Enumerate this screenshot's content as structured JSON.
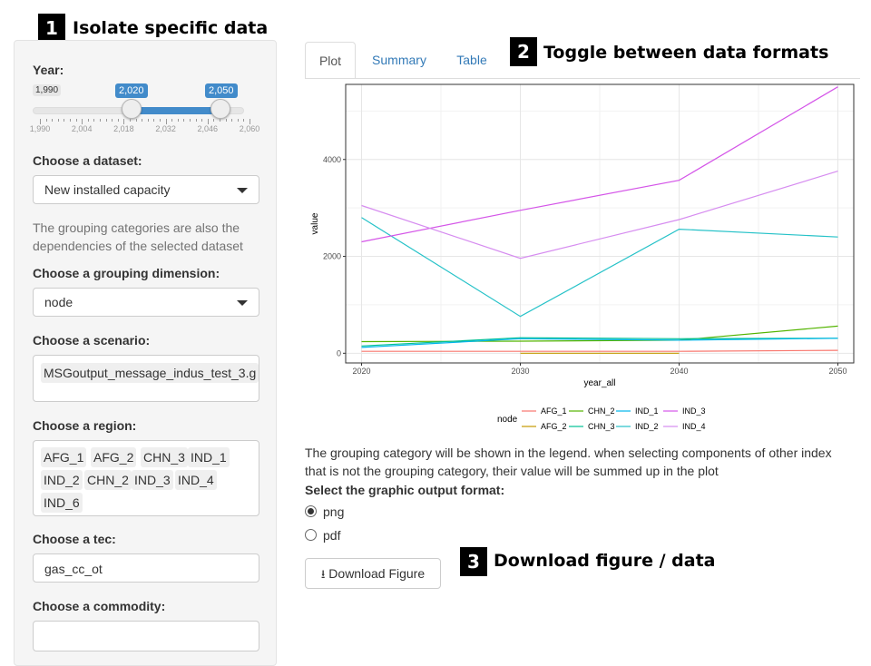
{
  "callouts": [
    {
      "num": "1",
      "text": "Isolate specific data"
    },
    {
      "num": "2",
      "text": "Toggle between data formats"
    },
    {
      "num": "3",
      "text": "Download figure / data"
    }
  ],
  "sidebar": {
    "year": {
      "label": "Year:",
      "min": "1,990",
      "from": "2,020",
      "to": "2,050",
      "range_min": 1990,
      "range_max": 2060,
      "ticks": [
        "1,990",
        "2,004",
        "2,018",
        "2,032",
        "2,046",
        "2,060"
      ]
    },
    "dataset": {
      "label": "Choose a dataset:",
      "value": "New installed capacity"
    },
    "help_text": "The grouping categories are also the dependencies of the selected dataset",
    "grouping": {
      "label": "Choose a grouping dimension:",
      "value": "node"
    },
    "scenario": {
      "label": "Choose a scenario:",
      "value": "MSGoutput_message_indus_test_3.g"
    },
    "region": {
      "label": "Choose a region:",
      "values": [
        "AFG_1",
        "AFG_2",
        "CHN_3",
        "IND_1",
        "IND_2",
        "CHN_2",
        "IND_3",
        "IND_4",
        "IND_6"
      ]
    },
    "tec": {
      "label": "Choose a tec:",
      "value": "gas_cc_ot"
    },
    "commodity": {
      "label": "Choose a commodity:",
      "value": ""
    }
  },
  "tabs": [
    {
      "label": "Plot",
      "active": true
    },
    {
      "label": "Summary",
      "active": false
    },
    {
      "label": "Table",
      "active": false
    }
  ],
  "chart_data": {
    "type": "line",
    "xlabel": "year_all",
    "ylabel": "value",
    "x": [
      2020,
      2030,
      2040,
      2050
    ],
    "xlim": [
      2019,
      2051
    ],
    "ylim": [
      -200,
      5550
    ],
    "yticks": [
      0,
      2000,
      4000
    ],
    "xticks": [
      2020,
      2030,
      2040,
      2050
    ],
    "legend_title": "node",
    "legend_position": "bottom",
    "series": [
      {
        "name": "AFG_1",
        "color": "#F8766D",
        "values": [
          40,
          40,
          40,
          60
        ]
      },
      {
        "name": "AFG_2",
        "color": "#C49A00",
        "values": [
          null,
          0,
          0,
          null
        ]
      },
      {
        "name": "CHN_2",
        "color": "#53B400",
        "values": [
          240,
          250,
          270,
          560
        ]
      },
      {
        "name": "CHN_3",
        "color": "#00C094",
        "values": [
          150,
          320,
          300,
          310
        ]
      },
      {
        "name": "IND_1",
        "color": "#00B6EB",
        "values": [
          120,
          300,
          270,
          310
        ]
      },
      {
        "name": "IND_2",
        "color": "#26C2C8",
        "values": [
          2800,
          760,
          2560,
          2400
        ]
      },
      {
        "name": "IND_3",
        "color": "#D455E8",
        "values": [
          2300,
          2950,
          3570,
          5500
        ]
      },
      {
        "name": "IND_4",
        "color": "#D68CF0",
        "values": [
          3050,
          1960,
          2760,
          3760
        ]
      }
    ]
  },
  "main": {
    "info_text_1": "The grouping category will be shown in the legend. when selecting components of other index",
    "info_text_2": "that is not the grouping category, their value will be summed up in the plot",
    "format_label": "Select the graphic output format:",
    "formats": [
      {
        "label": "png",
        "checked": true
      },
      {
        "label": "pdf",
        "checked": false
      }
    ],
    "download_label": "Download Figure"
  }
}
